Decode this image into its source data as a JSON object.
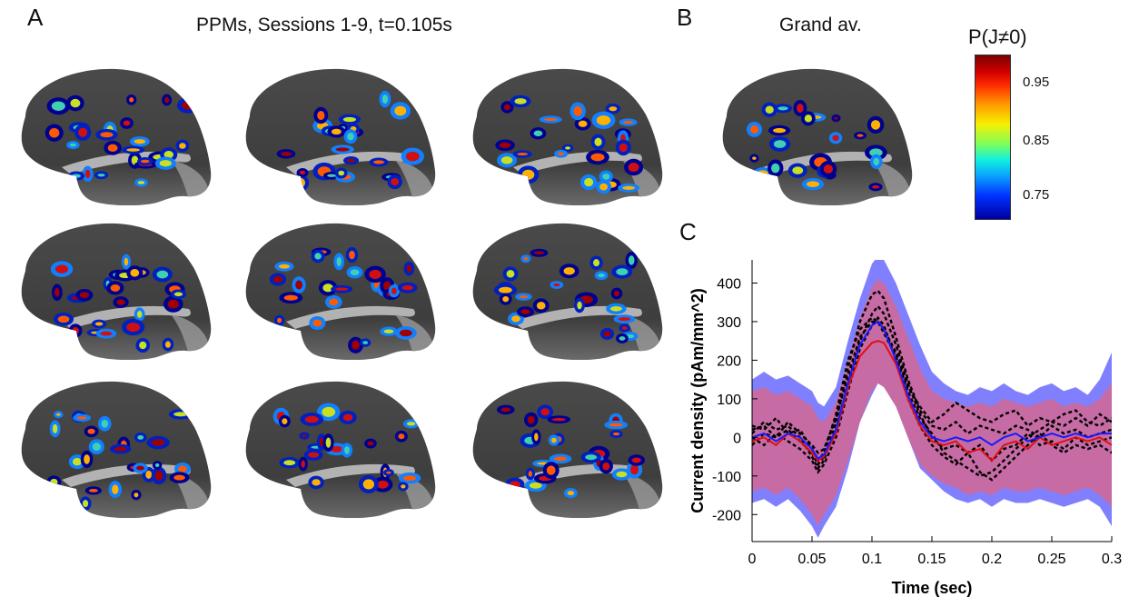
{
  "panel_a": {
    "letter": "A",
    "title": "PPMs, Sessions 1-9, t=0.105s",
    "brains": [
      {
        "seed": 11
      },
      {
        "seed": 23
      },
      {
        "seed": 37
      },
      {
        "seed": 41
      },
      {
        "seed": 53
      },
      {
        "seed": 67
      },
      {
        "seed": 71
      },
      {
        "seed": 83
      },
      {
        "seed": 97
      }
    ]
  },
  "panel_b": {
    "letter": "B",
    "title": "Grand av.",
    "brain": {
      "seed": 109
    }
  },
  "colorbar": {
    "title": "P(J≠0)",
    "ticks": [
      "0.95",
      "0.85",
      "0.75"
    ],
    "colormap": "jet"
  },
  "panel_c": {
    "letter": "C"
  },
  "chart_data": {
    "type": "line",
    "xlabel": "Time (sec)",
    "ylabel": "Current density (pAm/mm^2)",
    "xlim": [
      0,
      0.3
    ],
    "ylim": [
      -270,
      460
    ],
    "xticks": [
      0,
      0.05,
      0.1,
      0.15,
      0.2,
      0.25,
      0.3
    ],
    "xtick_labels": [
      "0",
      "0.05",
      "0.1",
      "0.15",
      "0.2",
      "0.25",
      "0.3"
    ],
    "yticks": [
      -200,
      -100,
      0,
      100,
      200,
      300,
      400
    ],
    "ytick_labels": [
      "-200",
      "-100",
      "0",
      "100",
      "200",
      "300",
      "400"
    ],
    "colors": {
      "blue_band": "#6a6aff",
      "red_band": "#ff5a5a",
      "overlap": "#8a2fb0",
      "red_line": "#e01010",
      "blue_line": "#1a1aff",
      "sessions": "#000000"
    },
    "x": [
      0,
      0.01,
      0.02,
      0.03,
      0.04,
      0.05,
      0.055,
      0.06,
      0.07,
      0.08,
      0.09,
      0.1,
      0.105,
      0.11,
      0.12,
      0.13,
      0.14,
      0.15,
      0.16,
      0.17,
      0.18,
      0.19,
      0.2,
      0.21,
      0.22,
      0.23,
      0.24,
      0.25,
      0.26,
      0.27,
      0.28,
      0.29,
      0.3
    ],
    "bands": [
      {
        "color_key": "blue_band",
        "upper": [
          150,
          170,
          150,
          160,
          140,
          120,
          90,
          80,
          130,
          250,
          360,
          450,
          470,
          460,
          400,
          320,
          240,
          170,
          140,
          120,
          110,
          130,
          120,
          140,
          120,
          110,
          130,
          140,
          120,
          130,
          110,
          150,
          220
        ],
        "lower": [
          -170,
          -160,
          -180,
          -160,
          -190,
          -230,
          -260,
          -230,
          -180,
          -80,
          40,
          110,
          140,
          130,
          80,
          0,
          -80,
          -110,
          -140,
          -160,
          -170,
          -160,
          -180,
          -160,
          -170,
          -170,
          -160,
          -170,
          -180,
          -170,
          -160,
          -180,
          -230
        ]
      },
      {
        "color_key": "red_band",
        "upper": [
          120,
          130,
          110,
          120,
          100,
          80,
          50,
          40,
          90,
          200,
          310,
          390,
          410,
          400,
          340,
          260,
          180,
          120,
          100,
          90,
          80,
          90,
          80,
          100,
          90,
          80,
          90,
          100,
          80,
          90,
          80,
          100,
          140
        ],
        "lower": [
          -140,
          -130,
          -150,
          -130,
          -160,
          -200,
          -230,
          -200,
          -150,
          -60,
          40,
          120,
          140,
          130,
          80,
          0,
          -70,
          -100,
          -120,
          -130,
          -150,
          -140,
          -150,
          -130,
          -140,
          -140,
          -130,
          -140,
          -150,
          -140,
          -130,
          -150,
          -180
        ]
      }
    ],
    "series": [
      {
        "color_key": "sessions",
        "dash": "4,3",
        "values": [
          10,
          40,
          20,
          30,
          0,
          -50,
          -80,
          -60,
          40,
          180,
          300,
          370,
          380,
          360,
          260,
          150,
          70,
          30,
          20,
          40,
          10,
          30,
          20,
          10,
          30,
          20,
          0,
          30,
          10,
          20,
          0,
          10,
          20
        ]
      },
      {
        "color_key": "sessions",
        "dash": "4,3",
        "values": [
          -20,
          10,
          0,
          20,
          -10,
          -40,
          -70,
          -50,
          20,
          140,
          250,
          320,
          340,
          320,
          240,
          140,
          60,
          0,
          -30,
          -20,
          -40,
          -20,
          -60,
          -30,
          -20,
          10,
          -20,
          -10,
          -30,
          0,
          -20,
          -10,
          0
        ]
      },
      {
        "color_key": "sessions",
        "dash": "4,3",
        "values": [
          30,
          20,
          50,
          10,
          20,
          -30,
          -60,
          -40,
          60,
          200,
          280,
          310,
          300,
          270,
          210,
          120,
          50,
          10,
          -40,
          -60,
          -80,
          -100,
          -90,
          -60,
          -30,
          0,
          20,
          40,
          30,
          50,
          30,
          60,
          40
        ]
      },
      {
        "color_key": "sessions",
        "dash": "4,3",
        "values": [
          0,
          -20,
          10,
          -10,
          -30,
          -60,
          -90,
          -70,
          0,
          120,
          230,
          290,
          310,
          290,
          200,
          100,
          30,
          -20,
          -50,
          -70,
          -40,
          -90,
          -110,
          -80,
          -50,
          -20,
          10,
          -20,
          -40,
          -20,
          -30,
          -20,
          -40
        ]
      },
      {
        "color_key": "sessions",
        "dash": "4,3",
        "values": [
          20,
          30,
          0,
          40,
          10,
          -20,
          -40,
          -30,
          50,
          160,
          260,
          300,
          300,
          280,
          220,
          130,
          80,
          40,
          60,
          90,
          70,
          50,
          40,
          60,
          70,
          30,
          50,
          40,
          60,
          70,
          40,
          30,
          50
        ]
      },
      {
        "color_key": "red_line",
        "dash": "",
        "values": [
          -10,
          0,
          -20,
          10,
          -10,
          -40,
          -60,
          -50,
          10,
          130,
          210,
          245,
          250,
          245,
          190,
          100,
          30,
          -10,
          -20,
          -10,
          -40,
          -30,
          -60,
          -20,
          -10,
          -30,
          0,
          -20,
          -10,
          0,
          -10,
          0,
          -20
        ]
      },
      {
        "color_key": "blue_line",
        "dash": "",
        "values": [
          0,
          10,
          -10,
          10,
          0,
          -30,
          -55,
          -45,
          20,
          140,
          240,
          290,
          300,
          280,
          200,
          110,
          40,
          0,
          -10,
          0,
          -10,
          0,
          -20,
          0,
          10,
          -10,
          0,
          10,
          0,
          10,
          0,
          10,
          10
        ]
      }
    ]
  }
}
